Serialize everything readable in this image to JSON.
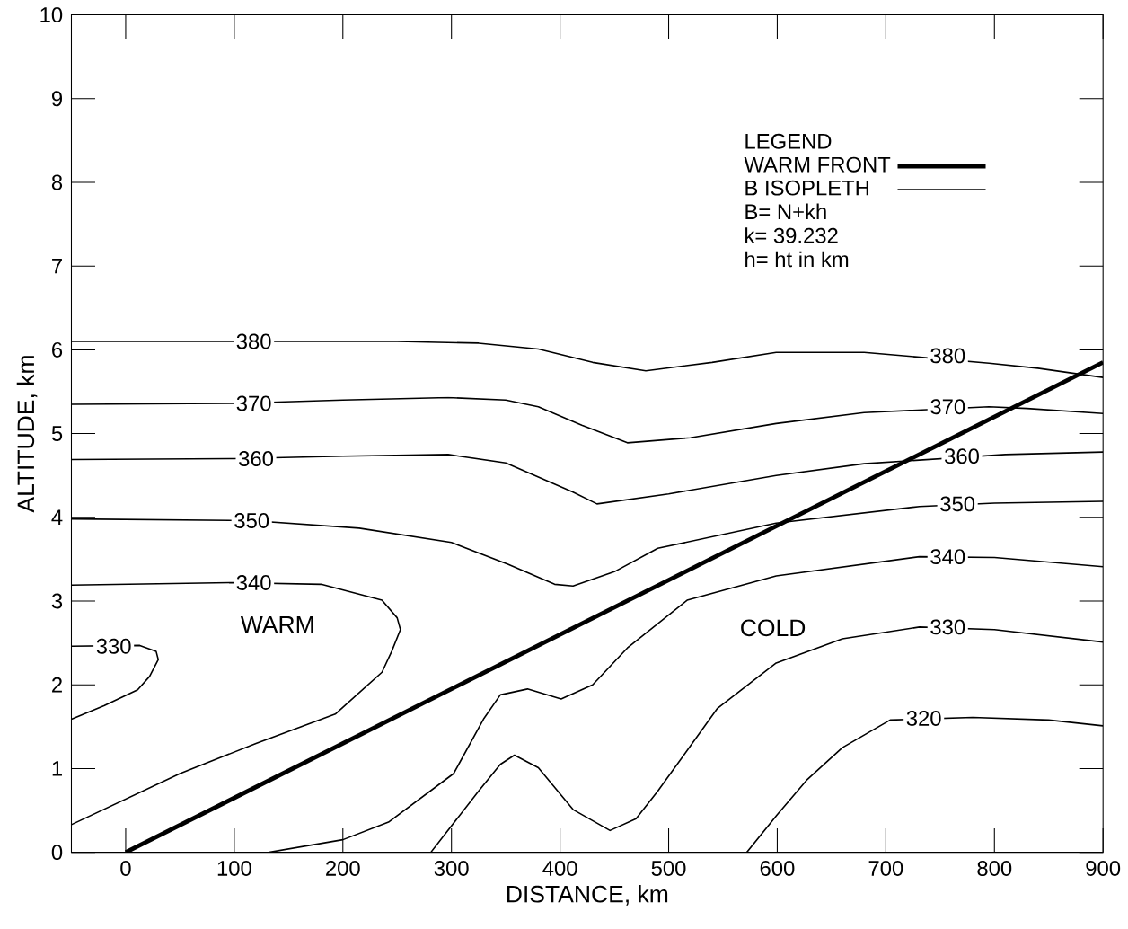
{
  "chart_data": {
    "type": "line",
    "xlabel": "DISTANCE, km",
    "ylabel": "ALTITUDE, km",
    "legend_title": "LEGEND",
    "xlim": [
      -50,
      900
    ],
    "ylim": [
      0,
      10
    ],
    "xticks": [
      0,
      100,
      200,
      300,
      400,
      500,
      600,
      700,
      800,
      900
    ],
    "yticks": [
      0,
      1,
      2,
      3,
      4,
      5,
      6,
      7,
      8,
      9,
      10
    ],
    "grid": false,
    "legend": "top right",
    "marker": "none",
    "line_style": "solid",
    "series": [
      {
        "name": "WARM FRONT",
        "color": "#000000",
        "x": [
          0,
          900
        ],
        "values": [
          0,
          5.85
        ]
      },
      {
        "name": "B ISOPLETH",
        "color": "#000000",
        "x": [
          -50,
          100,
          250,
          325,
          380,
          430,
          479,
          540,
          599,
          680,
          795,
          840,
          900
        ],
        "values": [
          6.1,
          6.1,
          6.1,
          6.08,
          6.01,
          5.85,
          5.75,
          5.85,
          5.97,
          5.97,
          5.84,
          5.78,
          5.67
        ]
      },
      {
        "color": "#000000",
        "x": [
          -50,
          100,
          200,
          297,
          350,
          380,
          420,
          462,
          520,
          599,
          680,
          795,
          830,
          900
        ],
        "values": [
          5.35,
          5.36,
          5.4,
          5.43,
          5.4,
          5.32,
          5.1,
          4.89,
          4.95,
          5.12,
          5.25,
          5.32,
          5.3,
          5.24
        ]
      },
      {
        "color": "#000000",
        "x": [
          -50,
          100,
          200,
          297,
          350,
          412,
          434,
          500,
          599,
          680,
          810,
          900
        ],
        "values": [
          4.69,
          4.7,
          4.73,
          4.75,
          4.65,
          4.3,
          4.16,
          4.28,
          4.5,
          4.64,
          4.75,
          4.78
        ]
      },
      {
        "color": "#000000",
        "x": [
          -50,
          116,
          215,
          300,
          352,
          395,
          412,
          450,
          490,
          599,
          731,
          800,
          900
        ],
        "values": [
          3.98,
          3.96,
          3.87,
          3.7,
          3.44,
          3.2,
          3.18,
          3.35,
          3.63,
          3.93,
          4.13,
          4.17,
          4.19
        ]
      },
      {
        "color": "#000000",
        "x": [
          -50,
          100,
          180,
          236,
          250,
          253,
          245,
          236,
          193,
          120,
          50,
          -50
        ],
        "values": [
          3.19,
          3.22,
          3.2,
          3.01,
          2.8,
          2.66,
          2.4,
          2.15,
          1.65,
          1.3,
          0.94,
          0.33
        ]
      },
      {
        "color": "#000000",
        "x": [
          132,
          200,
          242,
          302,
          330,
          345,
          370,
          401,
          430,
          462,
          517,
          599,
          731,
          800,
          900
        ],
        "values": [
          0,
          0.15,
          0.36,
          0.94,
          1.6,
          1.88,
          1.95,
          1.83,
          2.0,
          2.44,
          3.01,
          3.3,
          3.53,
          3.52,
          3.41
        ]
      },
      {
        "color": "#000000",
        "x": [
          -50,
          13,
          28,
          30,
          22,
          11,
          -20,
          -50
        ],
        "values": [
          2.46,
          2.47,
          2.4,
          2.3,
          2.1,
          1.94,
          1.75,
          1.59
        ]
      },
      {
        "color": "#000000",
        "x": [
          281,
          325,
          345,
          358,
          380,
          412,
          446,
          470,
          490,
          545,
          599,
          660,
          731,
          800,
          900
        ],
        "values": [
          0,
          0.73,
          1.05,
          1.16,
          1.01,
          0.51,
          0.26,
          0.4,
          0.73,
          1.72,
          2.26,
          2.55,
          2.69,
          2.66,
          2.51
        ]
      },
      {
        "color": "#000000",
        "x": [
          572,
          600,
          627,
          660,
          704,
          780,
          850,
          900
        ],
        "values": [
          0,
          0.45,
          0.86,
          1.25,
          1.58,
          1.61,
          1.58,
          1.51
        ]
      }
    ],
    "annotations": [
      "WARM",
      "COLD",
      "B= N+kh",
      "k= 39.232",
      "h= ht in km",
      {
        "text": "380",
        "x": 118,
        "y": 6.1
      },
      {
        "text": "380",
        "x": 757,
        "y": 5.93
      },
      {
        "text": "370",
        "x": 118,
        "y": 5.36
      },
      {
        "text": "370",
        "x": 757,
        "y": 5.32
      },
      {
        "text": "360",
        "x": 120,
        "y": 4.7
      },
      {
        "text": "360",
        "x": 770,
        "y": 4.73
      },
      {
        "text": "350",
        "x": 116,
        "y": 3.96
      },
      {
        "text": "350",
        "x": 766,
        "y": 4.16
      },
      {
        "text": "340",
        "x": 118,
        "y": 3.22
      },
      {
        "text": "340",
        "x": 757,
        "y": 3.53
      },
      {
        "text": "330",
        "x": -11,
        "y": 2.46
      },
      {
        "text": "330",
        "x": 757,
        "y": 2.69
      },
      {
        "text": "320",
        "x": 735,
        "y": 1.6
      }
    ]
  }
}
